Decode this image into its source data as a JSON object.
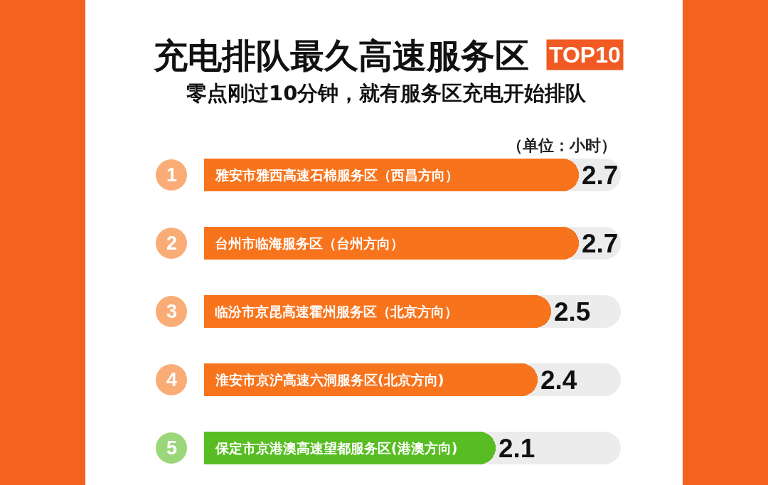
{
  "chart_data": {
    "type": "bar",
    "orientation": "horizontal",
    "title": "充电排队最久高速服务区",
    "subtitle": "零点刚过10分钟，就有服务区充电开始排队",
    "annotations": [
      "TOP10",
      "（单位：小时）",
      "1",
      "2",
      "3",
      "4",
      "5"
    ],
    "categories": [
      "雅安市雅西高速石棉服务区（西昌方向）",
      "台州市临海服务区（台州方向）",
      "临汾市京昆高速霍州服务区（北京方向）",
      "淮安市京沪高速六洞服务区(北京方向)",
      "保定市京港澳高速望都服务区(港澳方向)"
    ],
    "values": [
      2.7,
      2.7,
      2.5,
      2.4,
      2.1
    ],
    "colors": [
      "#f7741d",
      "#f7741d",
      "#f7741d",
      "#f7741d",
      "#58bd22"
    ],
    "data_labels": true,
    "tick_labels": false
  }
}
